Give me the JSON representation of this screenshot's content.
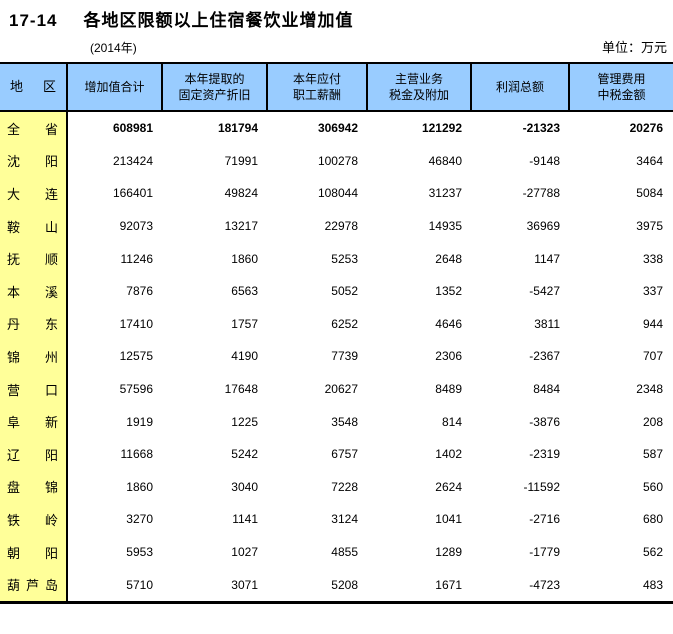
{
  "header": {
    "table_number": "17-14",
    "title": "各地区限额以上住宿餐饮业增加值",
    "year_note": "(2014年)",
    "unit_note": "单位：万元"
  },
  "colors": {
    "header_bg": "#99CCFF",
    "region_bg": "#FFFF99",
    "border": "#000000",
    "text": "#000000"
  },
  "table": {
    "columns": [
      "地区",
      "增加值合计",
      "本年提取的\n固定资产折旧",
      "本年应付\n职工薪酬",
      "主营业务\n税金及附加",
      "利润总额",
      "管理费用\n中税金额"
    ],
    "rows": [
      {
        "region": "全省",
        "emphasis": true,
        "values": [
          "608981",
          "181794",
          "306942",
          "121292",
          "-21323",
          "20276"
        ]
      },
      {
        "region": "沈阳",
        "emphasis": false,
        "values": [
          "213424",
          "71991",
          "100278",
          "46840",
          "-9148",
          "3464"
        ]
      },
      {
        "region": "大连",
        "emphasis": false,
        "values": [
          "166401",
          "49824",
          "108044",
          "31237",
          "-27788",
          "5084"
        ]
      },
      {
        "region": "鞍山",
        "emphasis": false,
        "values": [
          "92073",
          "13217",
          "22978",
          "14935",
          "36969",
          "3975"
        ]
      },
      {
        "region": "抚顺",
        "emphasis": false,
        "values": [
          "11246",
          "1860",
          "5253",
          "2648",
          "1147",
          "338"
        ]
      },
      {
        "region": "本溪",
        "emphasis": false,
        "values": [
          "7876",
          "6563",
          "5052",
          "1352",
          "-5427",
          "337"
        ]
      },
      {
        "region": "丹东",
        "emphasis": false,
        "values": [
          "17410",
          "1757",
          "6252",
          "4646",
          "3811",
          "944"
        ]
      },
      {
        "region": "锦州",
        "emphasis": false,
        "values": [
          "12575",
          "4190",
          "7739",
          "2306",
          "-2367",
          "707"
        ]
      },
      {
        "region": "营口",
        "emphasis": false,
        "values": [
          "57596",
          "17648",
          "20627",
          "8489",
          "8484",
          "2348"
        ]
      },
      {
        "region": "阜新",
        "emphasis": false,
        "values": [
          "1919",
          "1225",
          "3548",
          "814",
          "-3876",
          "208"
        ]
      },
      {
        "region": "辽阳",
        "emphasis": false,
        "values": [
          "11668",
          "5242",
          "6757",
          "1402",
          "-2319",
          "587"
        ]
      },
      {
        "region": "盘锦",
        "emphasis": false,
        "values": [
          "1860",
          "3040",
          "7228",
          "2624",
          "-11592",
          "560"
        ]
      },
      {
        "region": "铁岭",
        "emphasis": false,
        "values": [
          "3270",
          "1141",
          "3124",
          "1041",
          "-2716",
          "680"
        ]
      },
      {
        "region": "朝阳",
        "emphasis": false,
        "values": [
          "5953",
          "1027",
          "4855",
          "1289",
          "-1779",
          "562"
        ]
      },
      {
        "region": "葫芦岛",
        "emphasis": false,
        "values": [
          "5710",
          "3071",
          "5208",
          "1671",
          "-4723",
          "483"
        ]
      }
    ]
  }
}
